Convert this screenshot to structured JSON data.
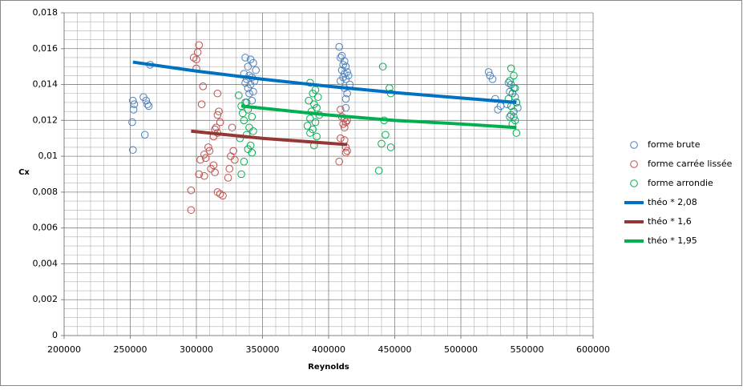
{
  "chart_data": {
    "type": "scatter",
    "xlabel": "Reynolds",
    "ylabel": "Cx",
    "xlim": [
      200000,
      600000
    ],
    "xticks": [
      200000,
      250000,
      300000,
      350000,
      400000,
      450000,
      500000,
      550000,
      600000
    ],
    "ylim": [
      0,
      0.018
    ],
    "yticks": [
      0,
      {
        "value": 0.002,
        "label": "0,002"
      },
      {
        "value": 0.004,
        "label": "0,004"
      },
      {
        "value": 0.006,
        "label": "0,006"
      },
      {
        "value": 0.008,
        "label": "0,008"
      },
      {
        "value": 0.01,
        "label": "0,01"
      },
      {
        "value": 0.012,
        "label": "0,012"
      },
      {
        "value": 0.014,
        "label": "0,014"
      },
      {
        "value": 0.016,
        "label": "0,016"
      },
      {
        "value": 0.018,
        "label": "0,018"
      }
    ],
    "grid": true,
    "minor_grid": true,
    "legend": "right",
    "series": [
      {
        "name": "forme brute",
        "color": "#4f81bd",
        "mode": "markers",
        "x": [
          252000,
          253000,
          252500,
          251500,
          252000,
          260000,
          262000,
          263000,
          264000,
          261000,
          265000,
          337000,
          341000,
          343000,
          339000,
          345000,
          336000,
          340000,
          342000,
          338000,
          344000,
          337000,
          341000,
          339000,
          343000,
          340000,
          342000,
          338000,
          408000,
          410000,
          409000,
          412000,
          411000,
          413000,
          410000,
          414000,
          412000,
          415000,
          411000,
          413000,
          409000,
          416000,
          412000,
          414000,
          413000,
          413000,
          521000,
          522000,
          524000,
          536000,
          538000,
          540000,
          537000,
          539000,
          541000,
          526000,
          542000,
          535000,
          530000,
          543000,
          528000,
          538000,
          540000
        ],
        "values": [
          0.0131,
          0.0129,
          0.0126,
          0.0119,
          0.01035,
          0.0133,
          0.0131,
          0.0129,
          0.0128,
          0.0112,
          0.0151,
          0.0155,
          0.0154,
          0.0152,
          0.015,
          0.0148,
          0.0146,
          0.0145,
          0.0144,
          0.0143,
          0.0142,
          0.0141,
          0.014,
          0.0138,
          0.0136,
          0.0135,
          0.0131,
          0.013,
          0.0161,
          0.0156,
          0.0155,
          0.0153,
          0.0151,
          0.015,
          0.0148,
          0.0147,
          0.0146,
          0.0145,
          0.0144,
          0.0143,
          0.0142,
          0.014,
          0.0138,
          0.0135,
          0.0132,
          0.0127,
          0.0147,
          0.0145,
          0.0143,
          0.0141,
          0.014,
          0.0138,
          0.0136,
          0.0135,
          0.0133,
          0.0132,
          0.013,
          0.0129,
          0.0128,
          0.0127,
          0.0126,
          0.0123,
          0.0122
        ]
      },
      {
        "name": "forme carrée lissée",
        "color": "#c0504d",
        "mode": "markers",
        "x": [
          298000,
          300000,
          302000,
          301000,
          300000,
          305000,
          316000,
          304000,
          317000,
          316000,
          318000,
          315000,
          314000,
          316000,
          313000,
          309000,
          310000,
          306000,
          307000,
          303000,
          313000,
          311000,
          314000,
          302000,
          306000,
          296000,
          316000,
          318000,
          320000,
          296000,
          327000,
          328000,
          326000,
          329000,
          325000,
          324000,
          409000,
          410000,
          412000,
          414000,
          413000,
          411000,
          412000,
          409000,
          412000,
          413000,
          414000,
          413000,
          408000
        ],
        "values": [
          0.0155,
          0.0154,
          0.0162,
          0.0158,
          0.0149,
          0.0139,
          0.0135,
          0.0129,
          0.0125,
          0.0123,
          0.0119,
          0.0116,
          0.0115,
          0.0113,
          0.0111,
          0.0105,
          0.0103,
          0.0101,
          0.0099,
          0.0098,
          0.0095,
          0.0093,
          0.0091,
          0.009,
          0.0089,
          0.0081,
          0.008,
          0.0079,
          0.0078,
          0.007,
          0.0116,
          0.0103,
          0.01,
          0.0098,
          0.0093,
          0.0088,
          0.0126,
          0.0122,
          0.0121,
          0.012,
          0.0119,
          0.0118,
          0.0116,
          0.011,
          0.0109,
          0.0105,
          0.0103,
          0.0102,
          0.0097
        ],
        "_": null
      },
      {
        "name": "forme arrondie",
        "color": "#00b050",
        "mode": "markers",
        "x": [
          332000,
          337000,
          334000,
          339000,
          335000,
          342000,
          336000,
          340000,
          343000,
          338000,
          333000,
          341000,
          339000,
          342000,
          336000,
          334000,
          386000,
          390000,
          388000,
          392000,
          385000,
          389000,
          391000,
          387000,
          393000,
          386000,
          390000,
          384000,
          388000,
          386000,
          391000,
          389000,
          441000,
          446000,
          447000,
          442000,
          443000,
          440000,
          447000,
          438000,
          538000,
          540000,
          537000,
          541000,
          539000,
          536000,
          542000,
          538000,
          540000,
          537000,
          541000,
          539000,
          542000
        ],
        "values": [
          0.0134,
          0.013,
          0.0128,
          0.0126,
          0.0124,
          0.0122,
          0.012,
          0.0116,
          0.0114,
          0.0112,
          0.011,
          0.0106,
          0.0104,
          0.0102,
          0.0097,
          0.009,
          0.0141,
          0.0137,
          0.0135,
          0.0133,
          0.0131,
          0.0129,
          0.0127,
          0.0125,
          0.0123,
          0.0121,
          0.0119,
          0.0117,
          0.0115,
          0.0113,
          0.0111,
          0.0106,
          0.015,
          0.0138,
          0.0135,
          0.012,
          0.0112,
          0.0107,
          0.0105,
          0.0092,
          0.0149,
          0.0145,
          0.0142,
          0.0138,
          0.0135,
          0.0132,
          0.013,
          0.0128,
          0.0125,
          0.0122,
          0.012,
          0.0118,
          0.0113
        ]
      },
      {
        "name": "théo * 2,08",
        "color": "#0070c0",
        "mode": "line",
        "x": [
          252000,
          300000,
          350000,
          400000,
          450000,
          500000,
          542000
        ],
        "values": [
          0.01525,
          0.01475,
          0.0143,
          0.0139,
          0.01355,
          0.01325,
          0.013
        ]
      },
      {
        "name": "théo * 1,6",
        "color": "#953735",
        "mode": "line",
        "x": [
          296000,
          350000,
          414000
        ],
        "values": [
          0.0114,
          0.011,
          0.01065
        ]
      },
      {
        "name": "théo * 1,95",
        "color": "#00b050",
        "mode": "line",
        "x": [
          334000,
          400000,
          450000,
          500000,
          542000
        ],
        "values": [
          0.0128,
          0.0123,
          0.012,
          0.0118,
          0.0116
        ]
      }
    ]
  }
}
